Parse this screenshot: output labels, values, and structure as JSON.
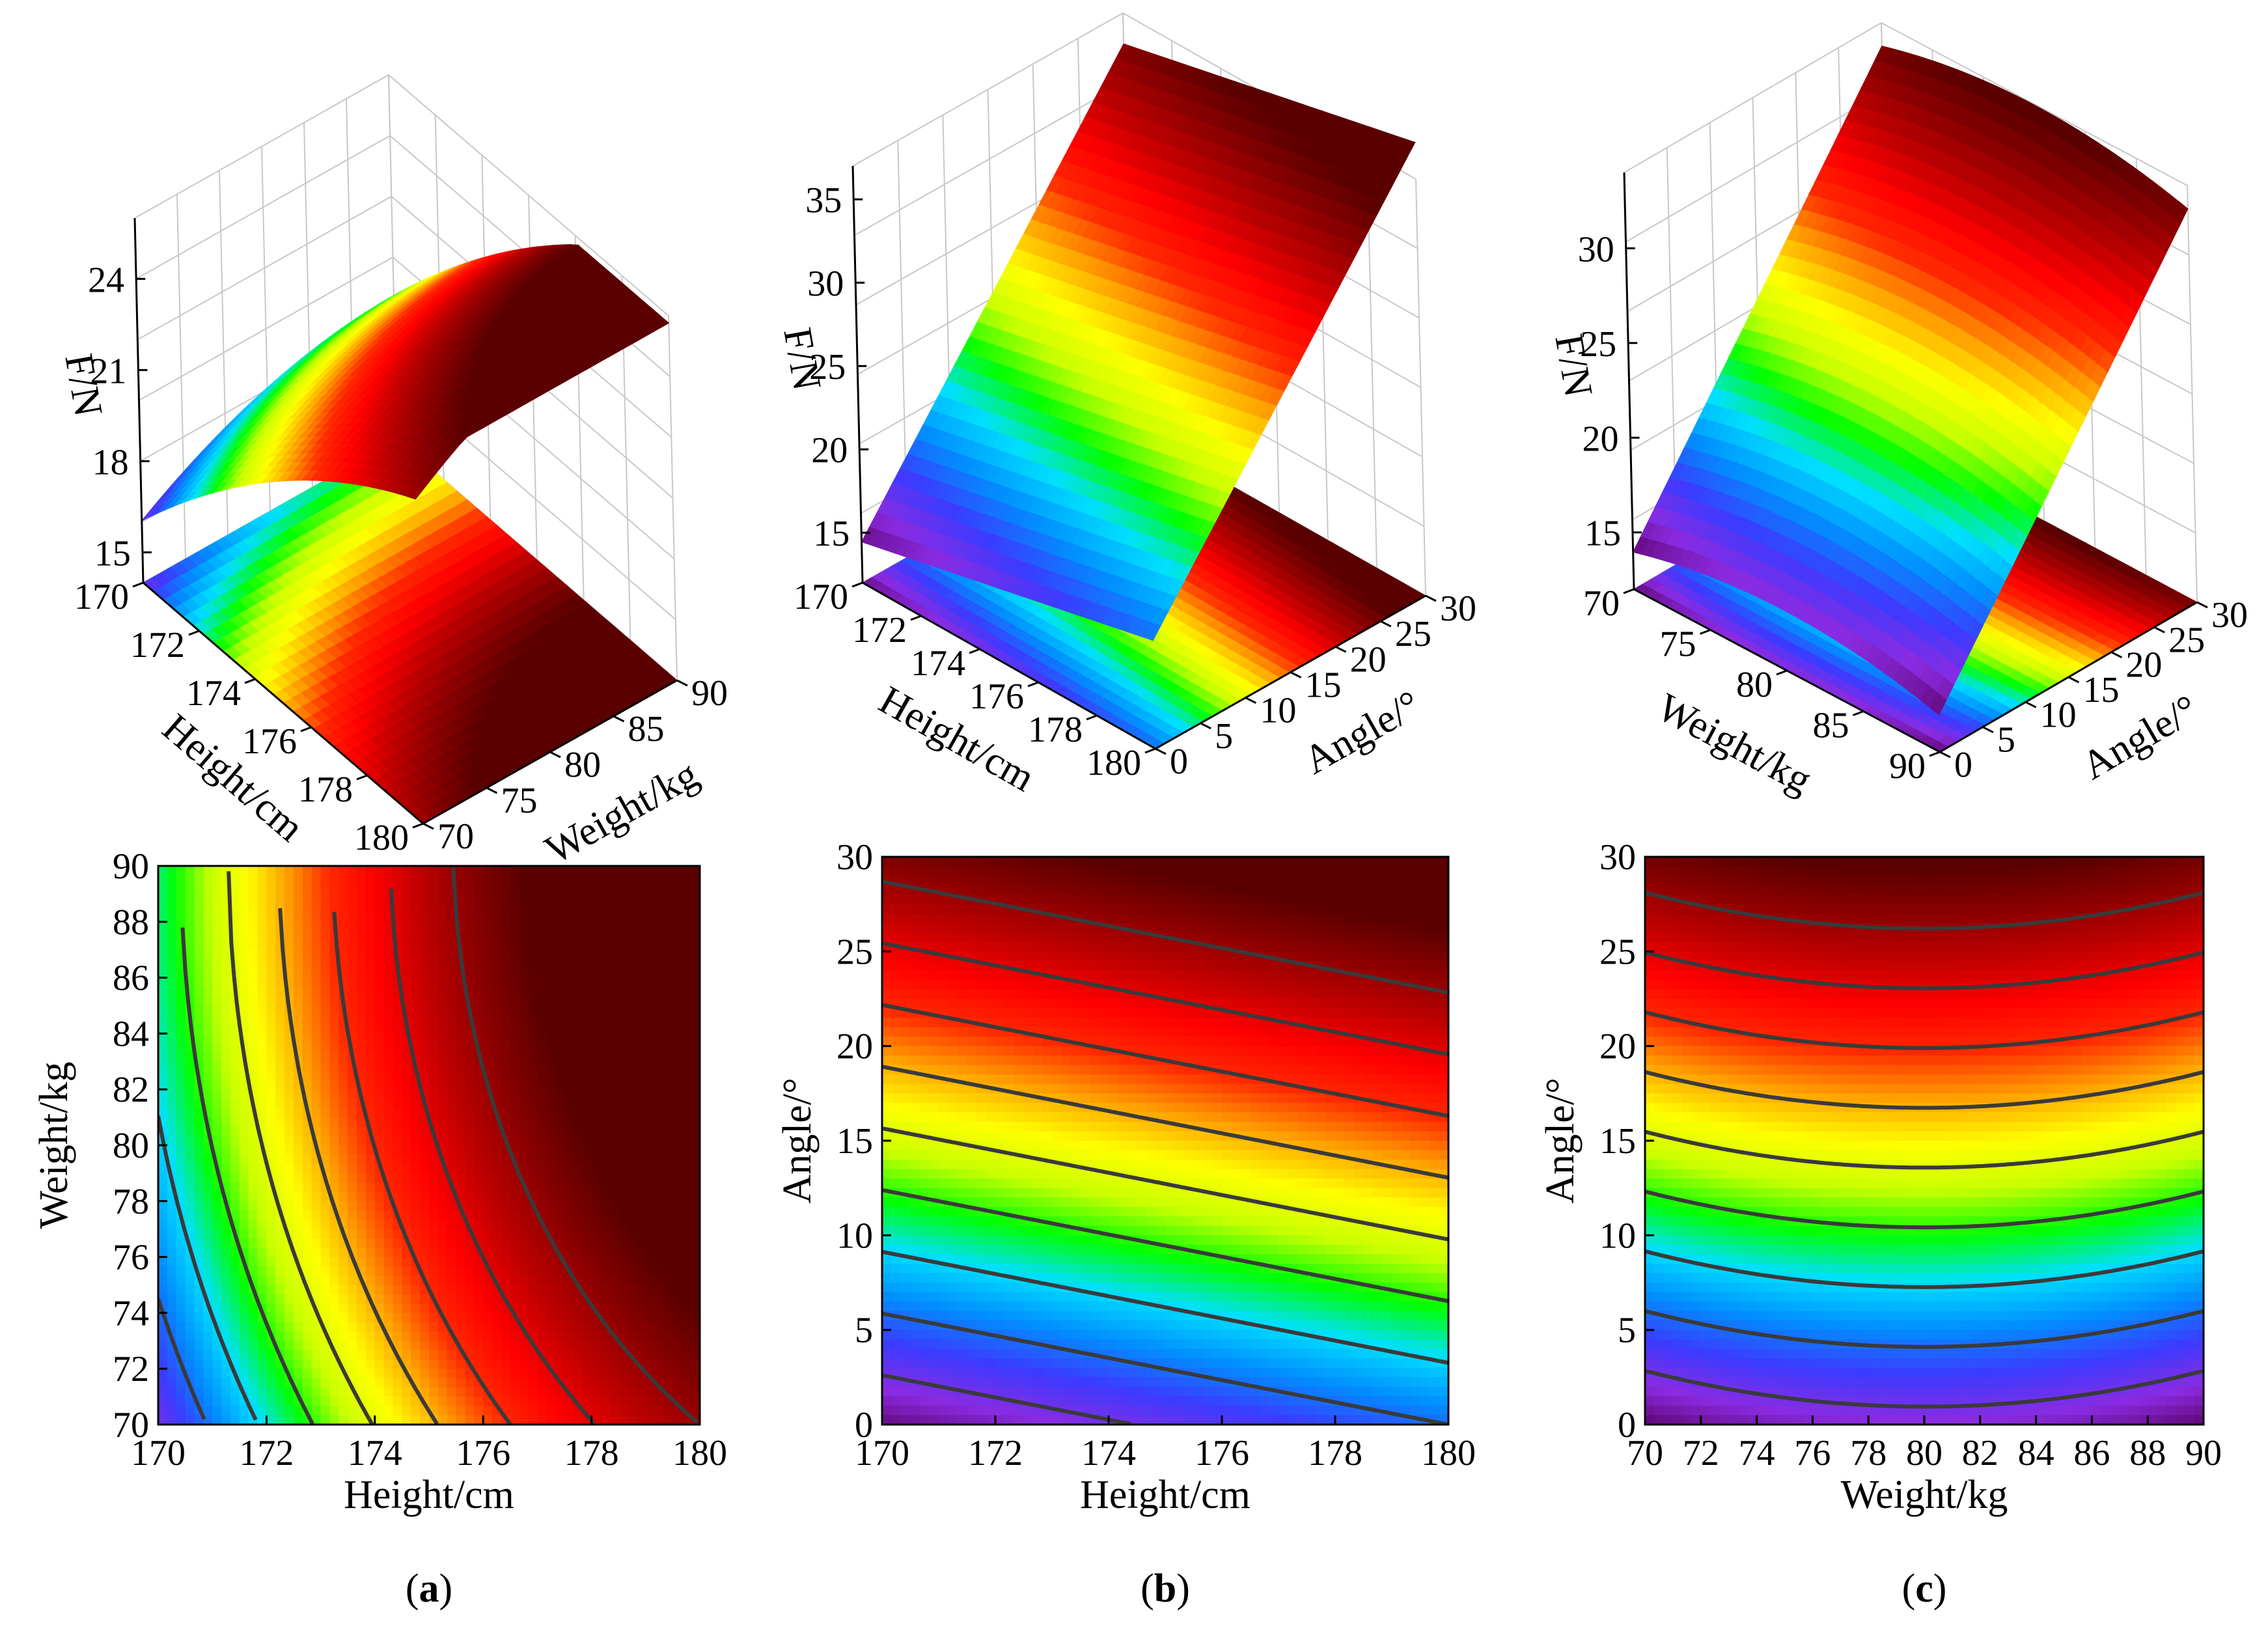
{
  "figure": {
    "panel_labels": [
      {
        "open": "(",
        "letter": "a",
        "close": ")"
      },
      {
        "open": "(",
        "letter": "b",
        "close": ")"
      },
      {
        "open": "(",
        "letter": "c",
        "close": ")"
      }
    ]
  },
  "colors": {
    "colormap": [
      "#5a0060",
      "#8a2be2",
      "#3b3bff",
      "#0090ff",
      "#00e0ff",
      "#00ff00",
      "#c8ff00",
      "#ffff00",
      "#ffa000",
      "#ff2a00",
      "#ff0000",
      "#c00000",
      "#8b0000",
      "#5a0000"
    ],
    "contour_line": "#3a3a3a",
    "grid": "#c8c8c8"
  },
  "chart_data": [
    {
      "id": "a-3d",
      "type": "surface3d",
      "zlabel": "F/N",
      "xlabel": "Height/cm",
      "ylabel": "Weight/kg",
      "xticks": [
        "170",
        "172",
        "174",
        "176",
        "178",
        "180"
      ],
      "yticks": [
        "70",
        "75",
        "80",
        "85",
        "90"
      ],
      "zticks": [
        "15",
        "18",
        "21",
        "24"
      ],
      "xlim": [
        170,
        180
      ],
      "ylim": [
        70,
        90
      ],
      "zlim": [
        14,
        26
      ]
    },
    {
      "id": "b-3d",
      "type": "surface3d",
      "zlabel": "F/N",
      "xlabel": "Height/cm",
      "ylabel": "Angle/°",
      "xticks": [
        "170",
        "172",
        "174",
        "176",
        "178",
        "180"
      ],
      "yticks": [
        "0",
        "5",
        "10",
        "15",
        "20",
        "25",
        "30"
      ],
      "zticks": [
        "15",
        "20",
        "25",
        "30",
        "35"
      ],
      "xlim": [
        170,
        180
      ],
      "ylim": [
        0,
        30
      ],
      "zlim": [
        12,
        37
      ]
    },
    {
      "id": "c-3d",
      "type": "surface3d",
      "zlabel": "F/N",
      "xlabel": "Weight/kg",
      "ylabel": "Angle/°",
      "xticks": [
        "70",
        "75",
        "80",
        "85",
        "90"
      ],
      "yticks": [
        "0",
        "5",
        "10",
        "15",
        "20",
        "25",
        "30"
      ],
      "zticks": [
        "15",
        "20",
        "25",
        "30"
      ],
      "xlim": [
        70,
        90
      ],
      "ylim": [
        0,
        30
      ],
      "zlim": [
        12,
        34
      ]
    },
    {
      "id": "a-contour",
      "type": "heatmap",
      "xlabel": "Height/cm",
      "ylabel": "Weight/kg",
      "xticks": [
        "170",
        "172",
        "174",
        "176",
        "178",
        "180"
      ],
      "yticks": [
        "70",
        "72",
        "74",
        "76",
        "78",
        "80",
        "82",
        "84",
        "86",
        "88",
        "90"
      ],
      "xlim": [
        170,
        180
      ],
      "ylim": [
        70,
        90
      ]
    },
    {
      "id": "b-contour",
      "type": "heatmap",
      "xlabel": "Height/cm",
      "ylabel": "Angle/°",
      "xticks": [
        "170",
        "172",
        "174",
        "176",
        "178",
        "180"
      ],
      "yticks": [
        "0",
        "5",
        "10",
        "15",
        "20",
        "25",
        "30"
      ],
      "xlim": [
        170,
        180
      ],
      "ylim": [
        0,
        30
      ]
    },
    {
      "id": "c-contour",
      "type": "heatmap",
      "xlabel": "Weight/kg",
      "ylabel": "Angle/°",
      "xticks": [
        "70",
        "72",
        "74",
        "76",
        "78",
        "80",
        "82",
        "84",
        "86",
        "88",
        "90"
      ],
      "yticks": [
        "0",
        "5",
        "10",
        "15",
        "20",
        "25",
        "30"
      ],
      "xlim": [
        70,
        90
      ],
      "ylim": [
        0,
        30
      ]
    }
  ]
}
